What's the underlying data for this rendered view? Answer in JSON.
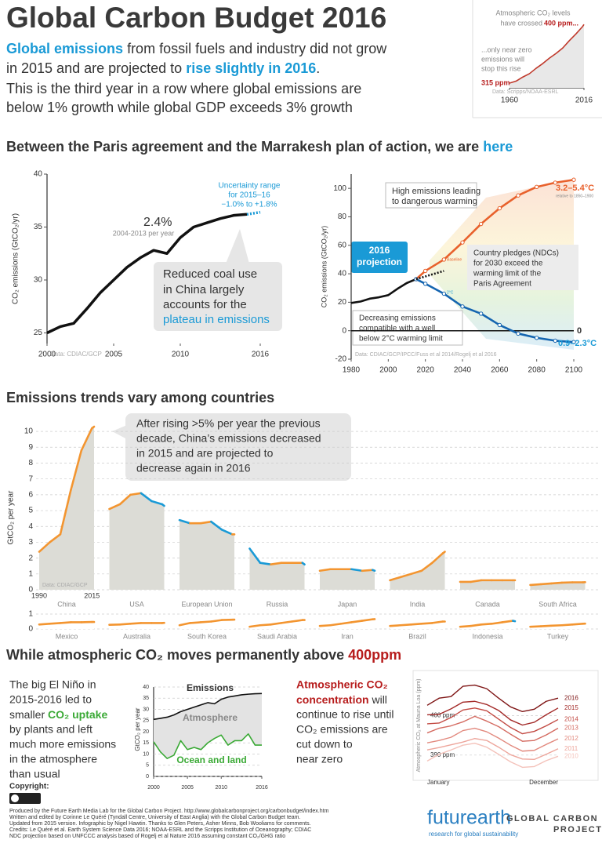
{
  "header": {
    "title": "Global Carbon Budget 2016",
    "intro": {
      "lead": "Global emissions",
      "line1": "from fossil fuels and industry did not grow",
      "line2": "in 2015 and are projected to",
      "highlight": "rise slightly in 2016",
      "period": ".",
      "line3": "This is the third year in a row where global emissions are",
      "line4": "below 1% growth while global GDP exceeds 3% growth"
    }
  },
  "sections": [
    {
      "text": "Between the Paris agreement and the Marrakesh plan of action, we are",
      "highlight": "here"
    },
    {
      "text": "Emissions trends vary among countries"
    },
    {
      "text": "While atmospheric CO₂ moves permanently above",
      "highlight": "400ppm"
    }
  ],
  "el_nino": {
    "lines": [
      "The big El Niño in",
      "2015-2016 led to"
    ],
    "pre": "smaller",
    "highlight": "CO₂ uptake",
    "lines2": [
      "by plants and left",
      "much more emissions",
      "in the atmosphere",
      "than usual"
    ]
  },
  "concentration": {
    "highlight1": "Atmospheric CO₂",
    "highlight2": "concentration",
    "rest": "will",
    "lines": [
      "continue to rise until",
      "CO₂ emissions are",
      "cut down to",
      "near zero"
    ]
  },
  "footer": {
    "copyright": "Copyright:",
    "credits": [
      "Produced by the Future Earth Media Lab for the Global Carbon Project. http://www.globalcarbonproject.org/carbonbudget/index.htm",
      "Written and edited by Corinne Le Quéré (Tyndall Centre, University of East Anglia) with the Global Carbon Budget team.",
      "Updated from 2015 version. Infographic by Nigel Hawtin. Thanks to Glen Peters, Asher Minns, Bob Wooliams for comments.",
      "Credits: Le Quéré et al. Earth System Science Data 2016; NOAA-ESRL and the Scripps Institution of Oceanography; CDIAC",
      "NDC projection based on UNFCCC analysis based of Rogelj et al Nature 2016 assuming constant CO₂/GHG ratio"
    ],
    "logo": "futurearth",
    "logo_sub": "research for global sustainability",
    "gcp": [
      "GLOBAL CARBON",
      "PROJECT"
    ]
  },
  "chart_data": [
    {
      "type": "line",
      "x": [
        1960,
        1965,
        1970,
        1975,
        1980,
        1985,
        1990,
        1995,
        2000,
        2005,
        2010,
        2015,
        2016
      ],
      "series": [
        {
          "color": "#c0392b",
          "fill": "#e8e8e8",
          "values": [
            317,
            320,
            326,
            331,
            339,
            346,
            354,
            361,
            369,
            380,
            390,
            401,
            404
          ]
        }
      ],
      "xlim": [
        1960,
        2016
      ],
      "ylim": [
        310,
        410
      ],
      "xticks": [
        1960,
        2016
      ],
      "annotations": [
        "Atmospheric CO₂ levels",
        "have crossed",
        "400 ppm...",
        "...only near zero",
        "emissions will",
        "stop this rise",
        "315 ppm",
        "Data: Scripps/NOAA-ESRL"
      ]
    },
    {
      "type": "line",
      "ylabel": "CO₂ emissions (GtCO₂/yr)",
      "x": [
        2000,
        2001,
        2002,
        2003,
        2004,
        2005,
        2006,
        2007,
        2008,
        2009,
        2010,
        2011,
        2012,
        2013,
        2014,
        2015
      ],
      "series": [
        {
          "color": "#111111",
          "values": [
            25.0,
            25.6,
            25.9,
            27.3,
            28.8,
            30.0,
            31.2,
            32.1,
            32.8,
            32.5,
            34.0,
            35.0,
            35.4,
            35.8,
            36.1,
            36.2
          ]
        },
        {
          "color": "#1a9ad6",
          "dashed": true,
          "x": [
            2015,
            2016
          ],
          "values": [
            36.2,
            36.4
          ]
        }
      ],
      "xlim": [
        2000,
        2016
      ],
      "ylim": [
        24,
        40
      ],
      "xticks": [
        2000,
        2005,
        2010,
        2016
      ],
      "yticks": [
        25,
        30,
        35,
        40
      ],
      "annotations": [
        "2.4%",
        "2004-2013 per year",
        "Uncertainty range",
        "for 2015–16",
        "−1.0% to +1.8%",
        "Reduced coal use",
        "in China largely",
        "accounts for the",
        "plateau in emissions",
        "Data: CDIAC/GCP"
      ]
    },
    {
      "type": "line",
      "ylabel": "CO₂ emissions (GtCO₂/yr)",
      "series": [
        {
          "color": "#111111",
          "x": [
            1980,
            1985,
            1990,
            1995,
            2000,
            2005,
            2010,
            2015
          ],
          "values": [
            19.5,
            20.5,
            22.5,
            23.5,
            25,
            29.5,
            33.5,
            36.2
          ]
        },
        {
          "color": "#e8612c",
          "x": [
            2015,
            2020,
            2030,
            2040,
            2050,
            2060,
            2070,
            2080,
            2090,
            2100
          ],
          "values": [
            36.2,
            42,
            50,
            62,
            75,
            86,
            95,
            101,
            104,
            106
          ]
        },
        {
          "color": "#1565b0",
          "x": [
            2015,
            2020,
            2030,
            2040,
            2050,
            2060,
            2070,
            2080,
            2090,
            2100
          ],
          "values": [
            36.2,
            33,
            26,
            17,
            12,
            4,
            -2,
            -5,
            -7,
            -8
          ]
        },
        {
          "color": "#111111",
          "dashed": true,
          "x": [
            2015,
            2030
          ],
          "values": [
            36.2,
            42
          ]
        }
      ],
      "xlim": [
        1980,
        2100
      ],
      "ylim": [
        -20,
        110
      ],
      "xticks": [
        1980,
        2000,
        2020,
        2040,
        2060,
        2080,
        2100
      ],
      "yticks": [
        -20,
        0,
        20,
        40,
        60,
        80,
        100
      ],
      "annotations": [
        "High emissions leading",
        "to dangerous warming",
        "3.2–5.4°C",
        "relative to 1850–1900",
        "2016",
        "projection",
        "Country pledges (NDCs)",
        "for 2030 exceed the",
        "warming limit of the",
        "Paris Agreement",
        "Decreasing emissions",
        "compatible with a well",
        "below 2°C warming limit",
        "0",
        "0.9–2.3°C",
        "Baseline",
        "2°C",
        "Data: CDIAC/GCP/IPCC/Fuss et al 2014/Rogelj et al 2016"
      ]
    },
    {
      "type": "small_multiples",
      "ylabel": "GtCO₂ per year",
      "x": [
        1990,
        1995,
        2000,
        2005,
        2010,
        2015,
        2016
      ],
      "xlim": [
        1990,
        2016
      ],
      "xticks": [
        1990,
        2015
      ],
      "ylim": [
        0,
        10.5
      ],
      "yticks": [
        0,
        1,
        2,
        3,
        4,
        5,
        6,
        7,
        8,
        9,
        10
      ],
      "grid": true,
      "rising_color": "#f39530",
      "falling_color": "#1a9ad6",
      "fill_color": "#dcdcd6",
      "panels": [
        {
          "name": "China",
          "values": [
            2.4,
            3.0,
            3.5,
            6.3,
            8.8,
            10.2,
            10.3
          ]
        },
        {
          "name": "USA",
          "values": [
            5.1,
            5.4,
            6.0,
            6.1,
            5.6,
            5.4,
            5.3
          ]
        },
        {
          "name": "European Union",
          "values": [
            4.4,
            4.2,
            4.2,
            4.3,
            3.8,
            3.5,
            3.5
          ]
        },
        {
          "name": "Russia",
          "values": [
            2.6,
            1.7,
            1.6,
            1.7,
            1.7,
            1.7,
            1.6
          ]
        },
        {
          "name": "Japan",
          "values": [
            1.2,
            1.3,
            1.3,
            1.3,
            1.2,
            1.25,
            1.2
          ]
        },
        {
          "name": "India",
          "values": [
            0.6,
            0.8,
            1.0,
            1.2,
            1.7,
            2.3,
            2.4
          ]
        },
        {
          "name": "Canada",
          "values": [
            0.5,
            0.5,
            0.6,
            0.6,
            0.6,
            0.6,
            0.6
          ]
        },
        {
          "name": "South Africa",
          "values": [
            0.3,
            0.35,
            0.4,
            0.45,
            0.47,
            0.47,
            0.48
          ]
        }
      ],
      "annotations": [
        "Data: CDIAC/GCP",
        "After rising >5% per year the previous",
        "decade, China’s emissions decreased",
        "in 2015 and are projected to",
        "decrease again in 2016"
      ]
    },
    {
      "type": "small_multiples",
      "x": [
        1990,
        1995,
        2000,
        2005,
        2010,
        2015,
        2016
      ],
      "xlim": [
        1990,
        2016
      ],
      "ylim": [
        0,
        1
      ],
      "yticks": [
        0,
        1
      ],
      "grid": true,
      "rising_color": "#f39530",
      "falling_color": "#1a9ad6",
      "fill_color": "#ffffff",
      "panels": [
        {
          "name": "Mexico",
          "values": [
            0.3,
            0.35,
            0.4,
            0.45,
            0.45,
            0.47,
            0.47
          ]
        },
        {
          "name": "Australia",
          "values": [
            0.28,
            0.3,
            0.35,
            0.4,
            0.4,
            0.4,
            0.41
          ]
        },
        {
          "name": "South Korea",
          "values": [
            0.25,
            0.4,
            0.45,
            0.5,
            0.6,
            0.62,
            0.63
          ]
        },
        {
          "name": "Saudi Arabia",
          "values": [
            0.15,
            0.25,
            0.3,
            0.4,
            0.5,
            0.6,
            0.6
          ]
        },
        {
          "name": "Iran",
          "values": [
            0.2,
            0.25,
            0.35,
            0.45,
            0.55,
            0.65,
            0.66
          ]
        },
        {
          "name": "Brazil",
          "values": [
            0.2,
            0.25,
            0.3,
            0.35,
            0.4,
            0.5,
            0.5
          ]
        },
        {
          "name": "Indonesia",
          "values": [
            0.15,
            0.2,
            0.3,
            0.35,
            0.45,
            0.55,
            0.52
          ]
        },
        {
          "name": "Turkey",
          "values": [
            0.15,
            0.18,
            0.22,
            0.25,
            0.3,
            0.35,
            0.36
          ]
        }
      ]
    },
    {
      "type": "line",
      "ylabel": "GtCO₂ per year",
      "x": [
        2000,
        2001,
        2002,
        2003,
        2004,
        2005,
        2006,
        2007,
        2008,
        2009,
        2010,
        2011,
        2012,
        2013,
        2014,
        2015,
        2016
      ],
      "band_fill": "#e3e3e3",
      "grid": true,
      "series": [
        {
          "name": "Emissions",
          "color": "#111111",
          "values": [
            25.5,
            26,
            26.5,
            27.5,
            29,
            30,
            31,
            32,
            33,
            32.5,
            34.5,
            35.5,
            36,
            36.5,
            36.8,
            37,
            37.1
          ]
        },
        {
          "name": "Ocean and land",
          "color": "#3aa935",
          "values": [
            15.5,
            11,
            8,
            9.5,
            16,
            12,
            13,
            12,
            15,
            17,
            18.5,
            14,
            16,
            16,
            19,
            14,
            14
          ]
        }
      ],
      "xlim": [
        2000,
        2016
      ],
      "ylim": [
        0,
        40
      ],
      "xticks": [
        2000,
        2005,
        2010,
        2016
      ],
      "yticks": [
        0,
        5,
        10,
        15,
        20,
        25,
        30,
        35,
        40
      ],
      "annotations": [
        "Atmosphere"
      ]
    },
    {
      "type": "line",
      "ylabel": "Atmospheric CO₂ at Mauna Loa (ppm)",
      "categories": [
        "January",
        null,
        null,
        null,
        null,
        null,
        null,
        null,
        null,
        null,
        null,
        "December"
      ],
      "ylim": [
        385,
        410
      ],
      "grid": true,
      "yticks": [
        {
          "value": 390,
          "label": "390 ppm"
        },
        {
          "value": 400,
          "label": "400 ppm"
        }
      ],
      "series": [
        {
          "name": "2010",
          "color": "#f4c2ba",
          "values": [
            388.5,
            390.2,
            391.3,
            392.5,
            393.0,
            392.0,
            390.2,
            388.3,
            386.9,
            387.1,
            388.6,
            389.7
          ]
        },
        {
          "name": "2011",
          "color": "#eda59b",
          "values": [
            391.3,
            391.9,
            392.6,
            393.3,
            394.2,
            393.7,
            392.0,
            390.1,
            389.0,
            388.9,
            390.2,
            391.6
          ]
        },
        {
          "name": "2012",
          "color": "#e2897e",
          "values": [
            393.1,
            393.7,
            394.5,
            396.2,
            396.8,
            395.9,
            394.3,
            392.5,
            391.0,
            391.2,
            392.7,
            394.1
          ]
        },
        {
          "name": "2013",
          "color": "#d46a60",
          "values": [
            395.6,
            396.8,
            397.4,
            398.4,
            399.8,
            398.6,
            397.2,
            395.3,
            393.5,
            393.7,
            395.1,
            396.8
          ]
        },
        {
          "name": "2014",
          "color": "#c24a43",
          "values": [
            397.9,
            398.1,
            399.5,
            401.4,
            401.9,
            401.2,
            399.1,
            397.0,
            395.4,
            396.0,
            397.4,
            399.0
          ]
        },
        {
          "name": "2015",
          "color": "#a32a28",
          "values": [
            400.2,
            400.3,
            401.7,
            403.4,
            403.6,
            402.8,
            401.3,
            398.9,
            397.6,
            398.3,
            400.2,
            401.9
          ]
        },
        {
          "name": "2016",
          "color": "#7e1414",
          "values": [
            402.6,
            404.4,
            404.8,
            407.4,
            407.7,
            406.8,
            404.4,
            402.2,
            401.0,
            401.6,
            403.6,
            404.4
          ]
        }
      ]
    }
  ]
}
